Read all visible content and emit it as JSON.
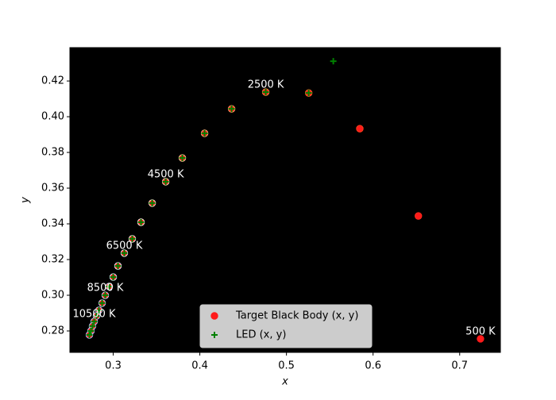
{
  "chart_data": {
    "type": "scatter",
    "x_label": "x",
    "y_label": "y",
    "xlim": [
      0.25,
      0.747
    ],
    "ylim": [
      0.268,
      0.4387
    ],
    "xticks": [
      0.3,
      0.4,
      0.5,
      0.6,
      0.7
    ],
    "yticks": [
      0.28,
      {
        "value": 0.3,
        "label": "0.30"
      },
      0.32,
      0.34,
      0.36,
      0.38,
      {
        "value": 0.4,
        "label": "0.40"
      },
      0.42
    ],
    "background": "#000000",
    "legend": "lower center",
    "series": [
      {
        "name": "Target Black Body (x, y)",
        "marker": "circle",
        "color": "#ff1a1a",
        "x": [
          0.724,
          0.6523,
          0.5847,
          0.5257,
          0.4761,
          0.4367,
          0.4055,
          0.3798,
          0.3606,
          0.345,
          0.3321,
          0.322,
          0.3128,
          0.3055,
          0.3,
          0.2954,
          0.2908,
          0.2872,
          0.2835,
          0.2807,
          0.278,
          0.2761,
          0.2743,
          0.2725
        ],
        "values": [
          0.2756,
          0.3444,
          0.3933,
          0.4133,
          0.4138,
          0.4044,
          0.3907,
          0.3769,
          0.3636,
          0.3516,
          0.3409,
          0.3316,
          0.3236,
          0.3164,
          0.3102,
          0.3049,
          0.3,
          0.2956,
          0.2916,
          0.2884,
          0.2853,
          0.2827,
          0.28,
          0.2778
        ],
        "point_colors": [
          "#ff1a1a",
          "#ff2a1a",
          "#ff3c1a",
          "#ff6a2a",
          "#ff8a40",
          "#ffa060",
          "#ffb878",
          "#ffcc98",
          "#ffdcb8",
          "#ffe8d0",
          "#fff2e8",
          "#fffaf6",
          "#f8f8ff",
          "#eef0ff",
          "#e4eaff",
          "#dce4ff",
          "#d4deff",
          "#ccd8ff",
          "#c6d4ff",
          "#c0d0ff",
          "#bccdff",
          "#b8caff",
          "#b4c8ff",
          "#b0c5ff"
        ]
      },
      {
        "name": "LED (x, y)",
        "marker": "plus",
        "color": "#008000",
        "x": [
          0.5541,
          0.5257,
          0.4761,
          0.4367,
          0.4055,
          0.3798,
          0.3606,
          0.345,
          0.3321,
          0.322,
          0.3128,
          0.3055,
          0.3,
          0.2954,
          0.2908,
          0.2872,
          0.2835,
          0.2807,
          0.278,
          0.2761,
          0.2743,
          0.2725
        ],
        "values": [
          0.4311,
          0.4133,
          0.4138,
          0.4044,
          0.3907,
          0.3769,
          0.3636,
          0.3516,
          0.3409,
          0.3316,
          0.3236,
          0.3164,
          0.3102,
          0.3049,
          0.3,
          0.2956,
          0.2916,
          0.2884,
          0.2853,
          0.2827,
          0.28,
          0.2778
        ]
      }
    ],
    "annotations": [
      {
        "text": "500 K",
        "x": 0.724,
        "y": 0.2756
      },
      {
        "text": "2500 K",
        "x": 0.4761,
        "y": 0.4138
      },
      {
        "text": "4500 K",
        "x": 0.3606,
        "y": 0.3636
      },
      {
        "text": "6500 K",
        "x": 0.3128,
        "y": 0.3236
      },
      {
        "text": "8500 K",
        "x": 0.2908,
        "y": 0.3
      },
      {
        "text": "10500 K",
        "x": 0.278,
        "y": 0.2853
      }
    ]
  }
}
